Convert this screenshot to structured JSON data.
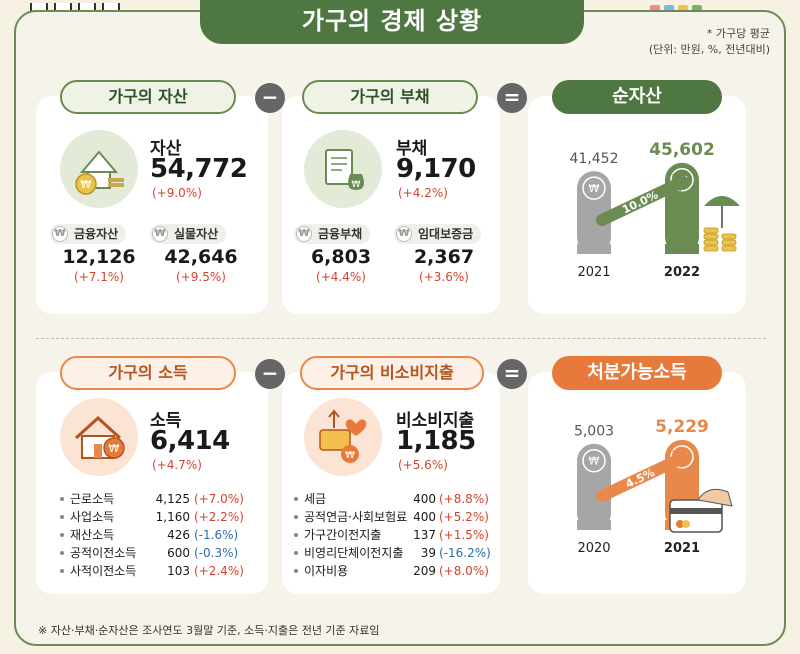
{
  "title": "가구의 경제 상황",
  "note": {
    "line1": "* 가구당 평균",
    "line2": "(단위: 만원, %, 전년대비)"
  },
  "footnote": "※ 자산·부채·순자산은 조사연도 3월말 기준, 소득·지출은 전년 기준 자료임",
  "operators": {
    "minus": "−",
    "equals": "="
  },
  "currency_symbol": "₩",
  "assets": {
    "header": "가구의 자산",
    "label": "자산",
    "value": "54,772",
    "change": "(+9.0%)",
    "sub1": {
      "label": "금융자산",
      "value": "12,126",
      "change": "(+7.1%)"
    },
    "sub2": {
      "label": "실물자산",
      "value": "42,646",
      "change": "(+9.5%)"
    }
  },
  "debt": {
    "header": "가구의 부채",
    "label": "부채",
    "value": "9,170",
    "change": "(+4.2%)",
    "sub1": {
      "label": "금융부채",
      "value": "6,803",
      "change": "(+4.4%)"
    },
    "sub2": {
      "label": "임대보증금",
      "value": "2,367",
      "change": "(+3.6%)"
    }
  },
  "income": {
    "header": "가구의 소득",
    "label": "소득",
    "value": "6,414",
    "change": "(+4.7%)",
    "items": [
      {
        "label": "근로소득",
        "value": "4,125",
        "change": "(+7.0%)"
      },
      {
        "label": "사업소득",
        "value": "1,160",
        "change": "(+2.2%)"
      },
      {
        "label": "재산소득",
        "value": "426",
        "change": "(-1.6%)"
      },
      {
        "label": "공적이전소득",
        "value": "600",
        "change": "(-0.3%)"
      },
      {
        "label": "사적이전소득",
        "value": "103",
        "change": "(+2.4%)"
      }
    ]
  },
  "nonconsumption": {
    "header": "가구의 비소비지출",
    "label": "비소비지출",
    "value": "1,185",
    "change": "(+5.6%)",
    "items": [
      {
        "label": "세금",
        "value": "400",
        "change": "(+8.8%)"
      },
      {
        "label": "공적연금·사회보험료",
        "value": "400",
        "change": "(+5.2%)"
      },
      {
        "label": "가구간이전지출",
        "value": "137",
        "change": "(+1.5%)"
      },
      {
        "label": "비영리단체이전지출",
        "value": "39",
        "change": "(-16.2%)"
      },
      {
        "label": "이자비용",
        "value": "209",
        "change": "(+8.0%)"
      }
    ]
  },
  "colors": {
    "green": "#6a8b52",
    "dark_green": "#4f7742",
    "orange": "#e8884b",
    "red": "#d2432f",
    "blue": "#2f6ca8",
    "gray_bar": "#a6a6a6"
  },
  "chart_data": [
    {
      "type": "bar",
      "title": "순자산",
      "categories": [
        "2021",
        "2022"
      ],
      "values": [
        41452,
        45602
      ],
      "value_labels": [
        "41,452",
        "45,602"
      ],
      "growth_label": "10.0%",
      "ylim": [
        0,
        50000
      ]
    },
    {
      "type": "bar",
      "title": "처분가능소득",
      "categories": [
        "2020",
        "2021"
      ],
      "values": [
        5003,
        5229
      ],
      "value_labels": [
        "5,003",
        "5,229"
      ],
      "growth_label": "4.5%",
      "ylim": [
        0,
        5800
      ]
    }
  ]
}
